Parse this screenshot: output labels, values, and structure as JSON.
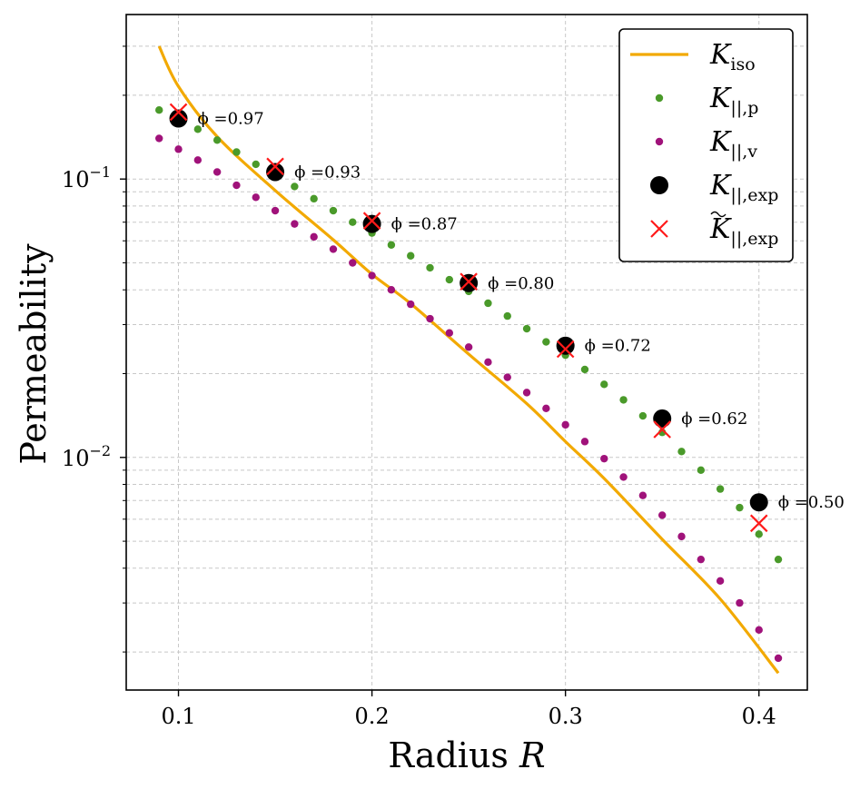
{
  "chart_data": {
    "type": "scatter",
    "xlabel": "Radius R",
    "ylabel": "Permeability",
    "xlim": [
      0.073,
      0.425
    ],
    "ylim": [
      0.00146,
      0.39
    ],
    "yscale": "log",
    "grid": true,
    "legend_position": "top-right",
    "x_ticks": [
      {
        "value": 0.1,
        "label": "0.1"
      },
      {
        "value": 0.2,
        "label": "0.2"
      },
      {
        "value": 0.3,
        "label": "0.3"
      },
      {
        "value": 0.4,
        "label": "0.4"
      }
    ],
    "y_ticks": [
      {
        "value": 0.01,
        "base": "10",
        "exp": "−2"
      },
      {
        "value": 0.1,
        "base": "10",
        "exp": "−1"
      }
    ],
    "series": [
      {
        "name": "K_iso",
        "label_main": "K",
        "label_sub": "iso",
        "kind": "line",
        "color": "#f2a900",
        "x": [
          0.09,
          0.1,
          0.12,
          0.15,
          0.18,
          0.2,
          0.22,
          0.25,
          0.28,
          0.3,
          0.32,
          0.35,
          0.38,
          0.41
        ],
        "y": [
          0.3,
          0.215,
          0.142,
          0.091,
          0.0605,
          0.0455,
          0.0357,
          0.0235,
          0.0156,
          0.0114,
          0.0084,
          0.00508,
          0.0031,
          0.00168
        ]
      },
      {
        "name": "K_||,p",
        "label_main": "K",
        "label_sub": "||,p",
        "kind": "points",
        "color": "#4a9a2a",
        "marker": "dot",
        "x": [
          0.09,
          0.1,
          0.11,
          0.12,
          0.13,
          0.14,
          0.15,
          0.16,
          0.17,
          0.18,
          0.19,
          0.2,
          0.21,
          0.22,
          0.23,
          0.24,
          0.25,
          0.26,
          0.27,
          0.28,
          0.29,
          0.3,
          0.31,
          0.32,
          0.33,
          0.34,
          0.35,
          0.36,
          0.37,
          0.38,
          0.39,
          0.4,
          0.41
        ],
        "y": [
          0.177,
          0.163,
          0.151,
          0.138,
          0.125,
          0.113,
          0.104,
          0.094,
          0.085,
          0.077,
          0.07,
          0.064,
          0.058,
          0.053,
          0.048,
          0.0435,
          0.0395,
          0.0358,
          0.0322,
          0.029,
          0.026,
          0.0233,
          0.0207,
          0.0183,
          0.0161,
          0.0141,
          0.0123,
          0.0105,
          0.009,
          0.0077,
          0.0066,
          0.0053,
          0.0043
        ]
      },
      {
        "name": "K_||,v",
        "label_main": "K",
        "label_sub": "||,v",
        "kind": "points",
        "color": "#a0127a",
        "marker": "dot",
        "x": [
          0.09,
          0.1,
          0.11,
          0.12,
          0.13,
          0.14,
          0.15,
          0.16,
          0.17,
          0.18,
          0.19,
          0.2,
          0.21,
          0.22,
          0.23,
          0.24,
          0.25,
          0.26,
          0.27,
          0.28,
          0.29,
          0.3,
          0.31,
          0.32,
          0.33,
          0.34,
          0.35,
          0.36,
          0.37,
          0.38,
          0.39,
          0.4,
          0.41
        ],
        "y": [
          0.14,
          0.128,
          0.117,
          0.106,
          0.095,
          0.086,
          0.077,
          0.069,
          0.062,
          0.056,
          0.05,
          0.045,
          0.04,
          0.0355,
          0.0315,
          0.028,
          0.0249,
          0.022,
          0.0194,
          0.0171,
          0.015,
          0.0131,
          0.0114,
          0.0099,
          0.0085,
          0.0073,
          0.0062,
          0.0052,
          0.0043,
          0.0036,
          0.003,
          0.0024,
          0.0019
        ]
      },
      {
        "name": "K_||,exp",
        "label_main": "K",
        "label_sub": "||,exp",
        "kind": "points",
        "color": "#000000",
        "marker": "big-dot",
        "x": [
          0.1,
          0.15,
          0.2,
          0.25,
          0.3,
          0.35,
          0.4
        ],
        "y": [
          0.165,
          0.106,
          0.069,
          0.0423,
          0.0252,
          0.0138,
          0.0069
        ]
      },
      {
        "name": "K~_||,exp",
        "label_main": "K",
        "label_sub": "||,exp",
        "kind": "points",
        "color": "#ff1a1a",
        "marker": "cross",
        "x": [
          0.1,
          0.15,
          0.2,
          0.25,
          0.3,
          0.35,
          0.4
        ],
        "y": [
          0.174,
          0.111,
          0.0708,
          0.0428,
          0.0245,
          0.0126,
          0.0058
        ]
      }
    ],
    "annotations": [
      {
        "x": 0.1,
        "y": 0.165,
        "text": "ϕ =0.97"
      },
      {
        "x": 0.15,
        "y": 0.106,
        "text": "ϕ =0.93"
      },
      {
        "x": 0.2,
        "y": 0.069,
        "text": "ϕ =0.87"
      },
      {
        "x": 0.25,
        "y": 0.0423,
        "text": "ϕ =0.80"
      },
      {
        "x": 0.3,
        "y": 0.0252,
        "text": "ϕ =0.72"
      },
      {
        "x": 0.35,
        "y": 0.0138,
        "text": "ϕ =0.62"
      },
      {
        "x": 0.4,
        "y": 0.0069,
        "text": "ϕ =0.50"
      }
    ]
  }
}
